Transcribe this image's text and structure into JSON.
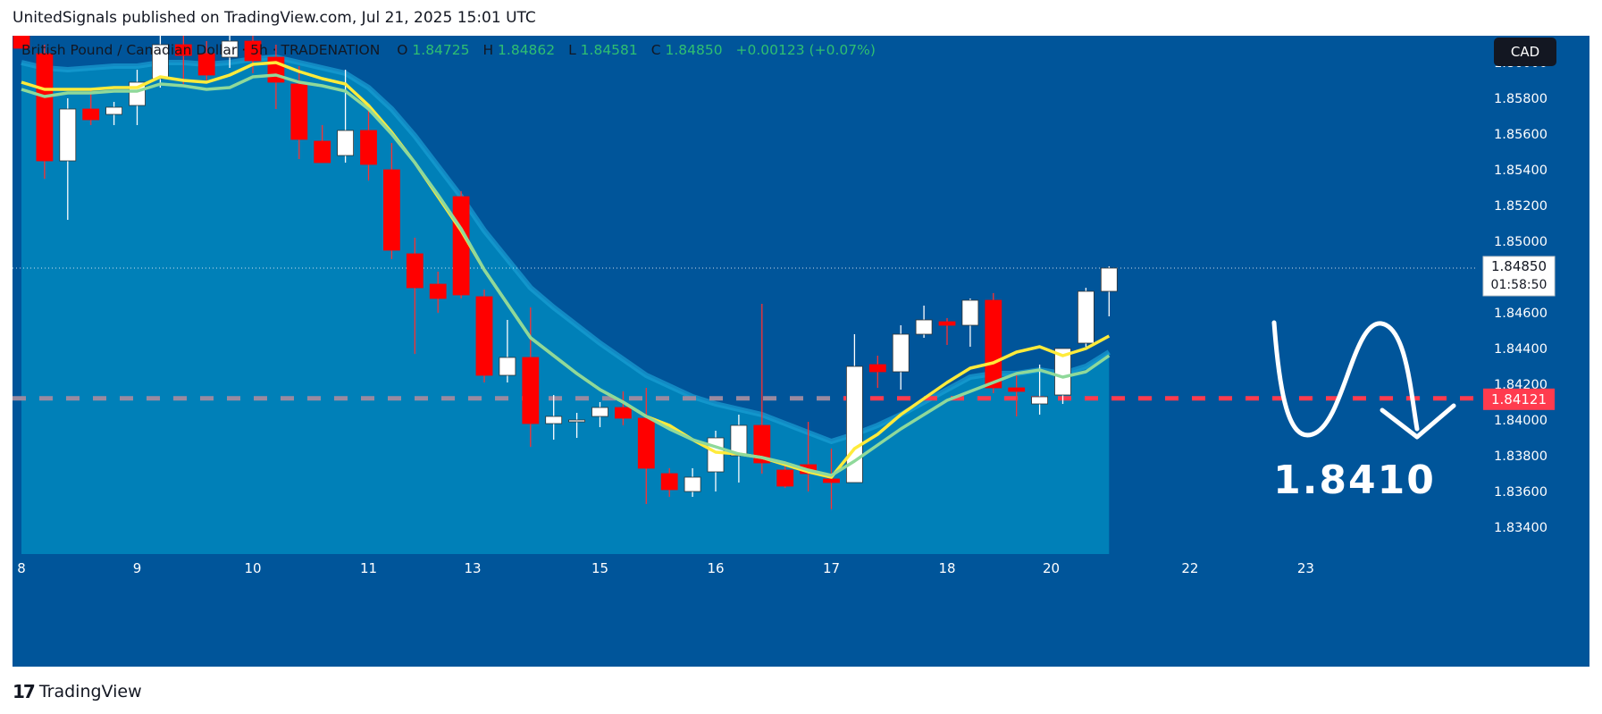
{
  "header": {
    "publisher": "UnitedSignals published on TradingView.com, Jul 21, 2025 15:01 UTC"
  },
  "footer": {
    "logo": "17",
    "brand": "TradingView"
  },
  "colors": {
    "background": "#00559a",
    "ribbon_fill": "#0080b8",
    "bear": "#ff0000",
    "bull": "#ffffff",
    "ema_fast": "#ffeb3b",
    "ema_slow": "#8fd99a",
    "support": "#ff3b4e",
    "text_axis": "#ffffff"
  },
  "chart_data": {
    "type": "candlestick",
    "legend": {
      "symbol": "British Pound / Canadian Dollar · 5h · TRADENATION",
      "o_label": "O",
      "o": "1.84725",
      "h_label": "H",
      "h": "1.84862",
      "l_label": "L",
      "l": "1.84581",
      "c_label": "C",
      "c": "1.84850",
      "change": "+0.00123 (+0.07%)"
    },
    "currency": "CAD",
    "ylim": [
      1.8325,
      1.8615
    ],
    "y_ticks": [
      "1.86000",
      "1.85800",
      "1.85600",
      "1.85400",
      "1.85200",
      "1.85000",
      "1.84600",
      "1.84400",
      "1.84200",
      "1.84000",
      "1.83800",
      "1.83600",
      "1.83400"
    ],
    "x_ticks": [
      {
        "label": "8",
        "i": 0
      },
      {
        "label": "9",
        "i": 5
      },
      {
        "label": "10",
        "i": 10
      },
      {
        "label": "11",
        "i": 15
      },
      {
        "label": "13",
        "i": 19.5
      },
      {
        "label": "15",
        "i": 25
      },
      {
        "label": "16",
        "i": 30
      },
      {
        "label": "17",
        "i": 35
      },
      {
        "label": "18",
        "i": 40
      },
      {
        "label": "20",
        "i": 44.5
      },
      {
        "label": "22",
        "i": 50.5
      },
      {
        "label": "23",
        "i": 55.5
      }
    ],
    "candles": [
      {
        "o": 1.8615,
        "h": 1.862,
        "l": 1.861,
        "c": 1.8608
      },
      {
        "o": 1.8605,
        "h": 1.861,
        "l": 1.8535,
        "c": 1.8545
      },
      {
        "o": 1.8545,
        "h": 1.858,
        "l": 1.8512,
        "c": 1.8574
      },
      {
        "o": 1.8574,
        "h": 1.8585,
        "l": 1.8565,
        "c": 1.8568
      },
      {
        "o": 1.8571,
        "h": 1.8578,
        "l": 1.8565,
        "c": 1.8575
      },
      {
        "o": 1.8576,
        "h": 1.8596,
        "l": 1.8565,
        "c": 1.8589
      },
      {
        "o": 1.8591,
        "h": 1.8618,
        "l": 1.8586,
        "c": 1.861
      },
      {
        "o": 1.861,
        "h": 1.8618,
        "l": 1.8588,
        "c": 1.8604
      },
      {
        "o": 1.8605,
        "h": 1.8612,
        "l": 1.859,
        "c": 1.8593
      },
      {
        "o": 1.8603,
        "h": 1.8615,
        "l": 1.8597,
        "c": 1.8612
      },
      {
        "o": 1.8612,
        "h": 1.8618,
        "l": 1.8594,
        "c": 1.8601
      },
      {
        "o": 1.8603,
        "h": 1.861,
        "l": 1.8574,
        "c": 1.8589
      },
      {
        "o": 1.8588,
        "h": 1.8598,
        "l": 1.8546,
        "c": 1.8557
      },
      {
        "o": 1.8556,
        "h": 1.8565,
        "l": 1.8544,
        "c": 1.8544
      },
      {
        "o": 1.8548,
        "h": 1.8596,
        "l": 1.8544,
        "c": 1.8562
      },
      {
        "o": 1.8562,
        "h": 1.8573,
        "l": 1.8534,
        "c": 1.8543
      },
      {
        "o": 1.854,
        "h": 1.8555,
        "l": 1.849,
        "c": 1.8495
      },
      {
        "o": 1.8493,
        "h": 1.8502,
        "l": 1.8437,
        "c": 1.8474
      },
      {
        "o": 1.8476,
        "h": 1.8483,
        "l": 1.846,
        "c": 1.8468
      },
      {
        "o": 1.8525,
        "h": 1.8528,
        "l": 1.8468,
        "c": 1.847
      },
      {
        "o": 1.8469,
        "h": 1.8473,
        "l": 1.8421,
        "c": 1.8425
      },
      {
        "o": 1.8425,
        "h": 1.8456,
        "l": 1.8421,
        "c": 1.8435
      },
      {
        "o": 1.8435,
        "h": 1.8463,
        "l": 1.8385,
        "c": 1.8398
      },
      {
        "o": 1.8398,
        "h": 1.8414,
        "l": 1.8389,
        "c": 1.8402
      },
      {
        "o": 1.8399,
        "h": 1.8404,
        "l": 1.839,
        "c": 1.84
      },
      {
        "o": 1.8402,
        "h": 1.841,
        "l": 1.8396,
        "c": 1.8407
      },
      {
        "o": 1.8407,
        "h": 1.8416,
        "l": 1.8397,
        "c": 1.8401
      },
      {
        "o": 1.8401,
        "h": 1.8418,
        "l": 1.8353,
        "c": 1.8373
      },
      {
        "o": 1.837,
        "h": 1.8373,
        "l": 1.8357,
        "c": 1.8361
      },
      {
        "o": 1.836,
        "h": 1.8373,
        "l": 1.8357,
        "c": 1.8368
      },
      {
        "o": 1.8371,
        "h": 1.8394,
        "l": 1.836,
        "c": 1.839
      },
      {
        "o": 1.838,
        "h": 1.8403,
        "l": 1.8365,
        "c": 1.8397
      },
      {
        "o": 1.8397,
        "h": 1.8465,
        "l": 1.837,
        "c": 1.8376
      },
      {
        "o": 1.8372,
        "h": 1.8377,
        "l": 1.8362,
        "c": 1.8363
      },
      {
        "o": 1.8375,
        "h": 1.8399,
        "l": 1.836,
        "c": 1.837
      },
      {
        "o": 1.8367,
        "h": 1.8384,
        "l": 1.835,
        "c": 1.8365
      },
      {
        "o": 1.8365,
        "h": 1.8448,
        "l": 1.8365,
        "c": 1.843
      },
      {
        "o": 1.8431,
        "h": 1.8436,
        "l": 1.8418,
        "c": 1.8427
      },
      {
        "o": 1.8427,
        "h": 1.8453,
        "l": 1.8417,
        "c": 1.8448
      },
      {
        "o": 1.8448,
        "h": 1.8464,
        "l": 1.8446,
        "c": 1.8456
      },
      {
        "o": 1.8455,
        "h": 1.8457,
        "l": 1.8442,
        "c": 1.8453
      },
      {
        "o": 1.8453,
        "h": 1.8468,
        "l": 1.8441,
        "c": 1.8467
      },
      {
        "o": 1.8467,
        "h": 1.8471,
        "l": 1.8415,
        "c": 1.8418
      },
      {
        "o": 1.8418,
        "h": 1.8425,
        "l": 1.8402,
        "c": 1.8416
      },
      {
        "o": 1.8409,
        "h": 1.8431,
        "l": 1.8403,
        "c": 1.8413
      },
      {
        "o": 1.8414,
        "h": 1.844,
        "l": 1.8409,
        "c": 1.844
      },
      {
        "o": 1.8443,
        "h": 1.8474,
        "l": 1.8441,
        "c": 1.8472
      },
      {
        "o": 1.8472,
        "h": 1.8486,
        "l": 1.8458,
        "c": 1.8485
      }
    ],
    "ema_fast": [
      1.8589,
      1.8585,
      1.8585,
      1.8585,
      1.8586,
      1.8586,
      1.8592,
      1.859,
      1.8589,
      1.8593,
      1.8599,
      1.86,
      1.8595,
      1.8591,
      1.8588,
      1.8576,
      1.8561,
      1.8544,
      1.8525,
      1.8506,
      1.8484,
      1.8465,
      1.8446,
      1.8436,
      1.8426,
      1.8417,
      1.841,
      1.8402,
      1.8397,
      1.8389,
      1.8382,
      1.8381,
      1.8379,
      1.8375,
      1.8371,
      1.8368,
      1.8384,
      1.8392,
      1.8403,
      1.8412,
      1.8421,
      1.8429,
      1.8432,
      1.8438,
      1.8441,
      1.8436,
      1.844,
      1.8447
    ],
    "ema_slow": [
      1.8585,
      1.8581,
      1.8583,
      1.8583,
      1.8584,
      1.8584,
      1.8588,
      1.8587,
      1.8585,
      1.8586,
      1.8592,
      1.8593,
      1.8589,
      1.8587,
      1.8584,
      1.8574,
      1.856,
      1.8544,
      1.8526,
      1.8507,
      1.8484,
      1.8465,
      1.8446,
      1.8436,
      1.8426,
      1.8417,
      1.841,
      1.8402,
      1.8395,
      1.8389,
      1.8385,
      1.8381,
      1.8379,
      1.8376,
      1.8372,
      1.8369,
      1.8377,
      1.8386,
      1.8395,
      1.8403,
      1.8411,
      1.8416,
      1.8421,
      1.8426,
      1.8428,
      1.8424,
      1.8427,
      1.8436
    ],
    "ribbon_upper": [
      1.86,
      1.8597,
      1.8596,
      1.8597,
      1.8598,
      1.8598,
      1.86,
      1.86,
      1.8599,
      1.86,
      1.8602,
      1.8603,
      1.86,
      1.8597,
      1.8594,
      1.8586,
      1.8574,
      1.8559,
      1.8542,
      1.8525,
      1.8506,
      1.849,
      1.8474,
      1.8463,
      1.8453,
      1.8443,
      1.8434,
      1.8425,
      1.8419,
      1.8413,
      1.8409,
      1.8406,
      1.8403,
      1.8398,
      1.8393,
      1.8388,
      1.8392,
      1.8397,
      1.8403,
      1.841,
      1.8417,
      1.8424,
      1.8426,
      1.8426,
      1.8428,
      1.8426,
      1.843,
      1.8438
    ],
    "current_price": {
      "value": 1.8485,
      "label": "1.84850",
      "countdown": "01:58:50"
    },
    "support": {
      "value": 1.84121,
      "label": "1.84121"
    },
    "target": {
      "label": "1.8410"
    }
  }
}
